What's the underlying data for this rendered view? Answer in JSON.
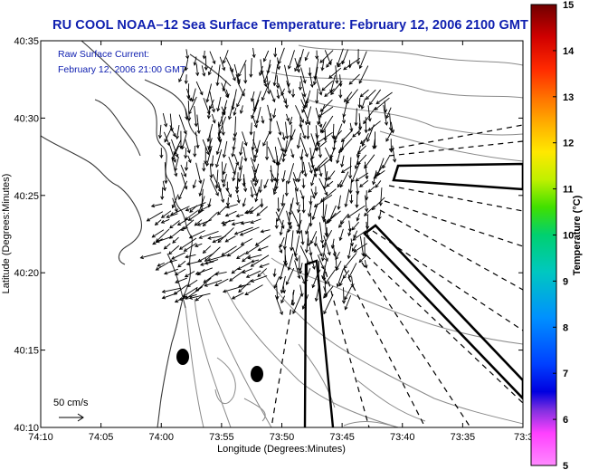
{
  "title": "RU COOL  NOAA–12  Sea Surface Temperature:  February 12, 2006 2100 GMT",
  "legend": {
    "line1": "Raw Surface Current:",
    "line2": "February 12, 2006 21:00 GMT"
  },
  "scale_label": "50 cm/s",
  "axes": {
    "xlabel": "Longitude (Degrees:Minutes)",
    "ylabel": "Latitude (Degrees:Minutes)",
    "xticks": [
      "74:10",
      "74:05",
      "74:00",
      "73:55",
      "73:50",
      "73:45",
      "73:40",
      "73:35",
      "73:3"
    ],
    "yticks": [
      "40:35",
      "40:30",
      "40:25",
      "40:20",
      "40:15",
      "40:10"
    ]
  },
  "colorbar": {
    "label": "Temperature (°C)",
    "ticks": [
      "15",
      "14",
      "13",
      "12",
      "11",
      "10",
      "9",
      "8",
      "7",
      "6",
      "5"
    ],
    "colors": [
      "#7a0000",
      "#c00000",
      "#ff2a00",
      "#ff7a00",
      "#ffc800",
      "#e8f000",
      "#9ae800",
      "#30d840",
      "#00c8a0",
      "#00a0e8",
      "#0050ff",
      "#0000e0",
      "#6a2ad0",
      "#c040ff",
      "#ff40ff",
      "#ff8aff"
    ]
  }
}
